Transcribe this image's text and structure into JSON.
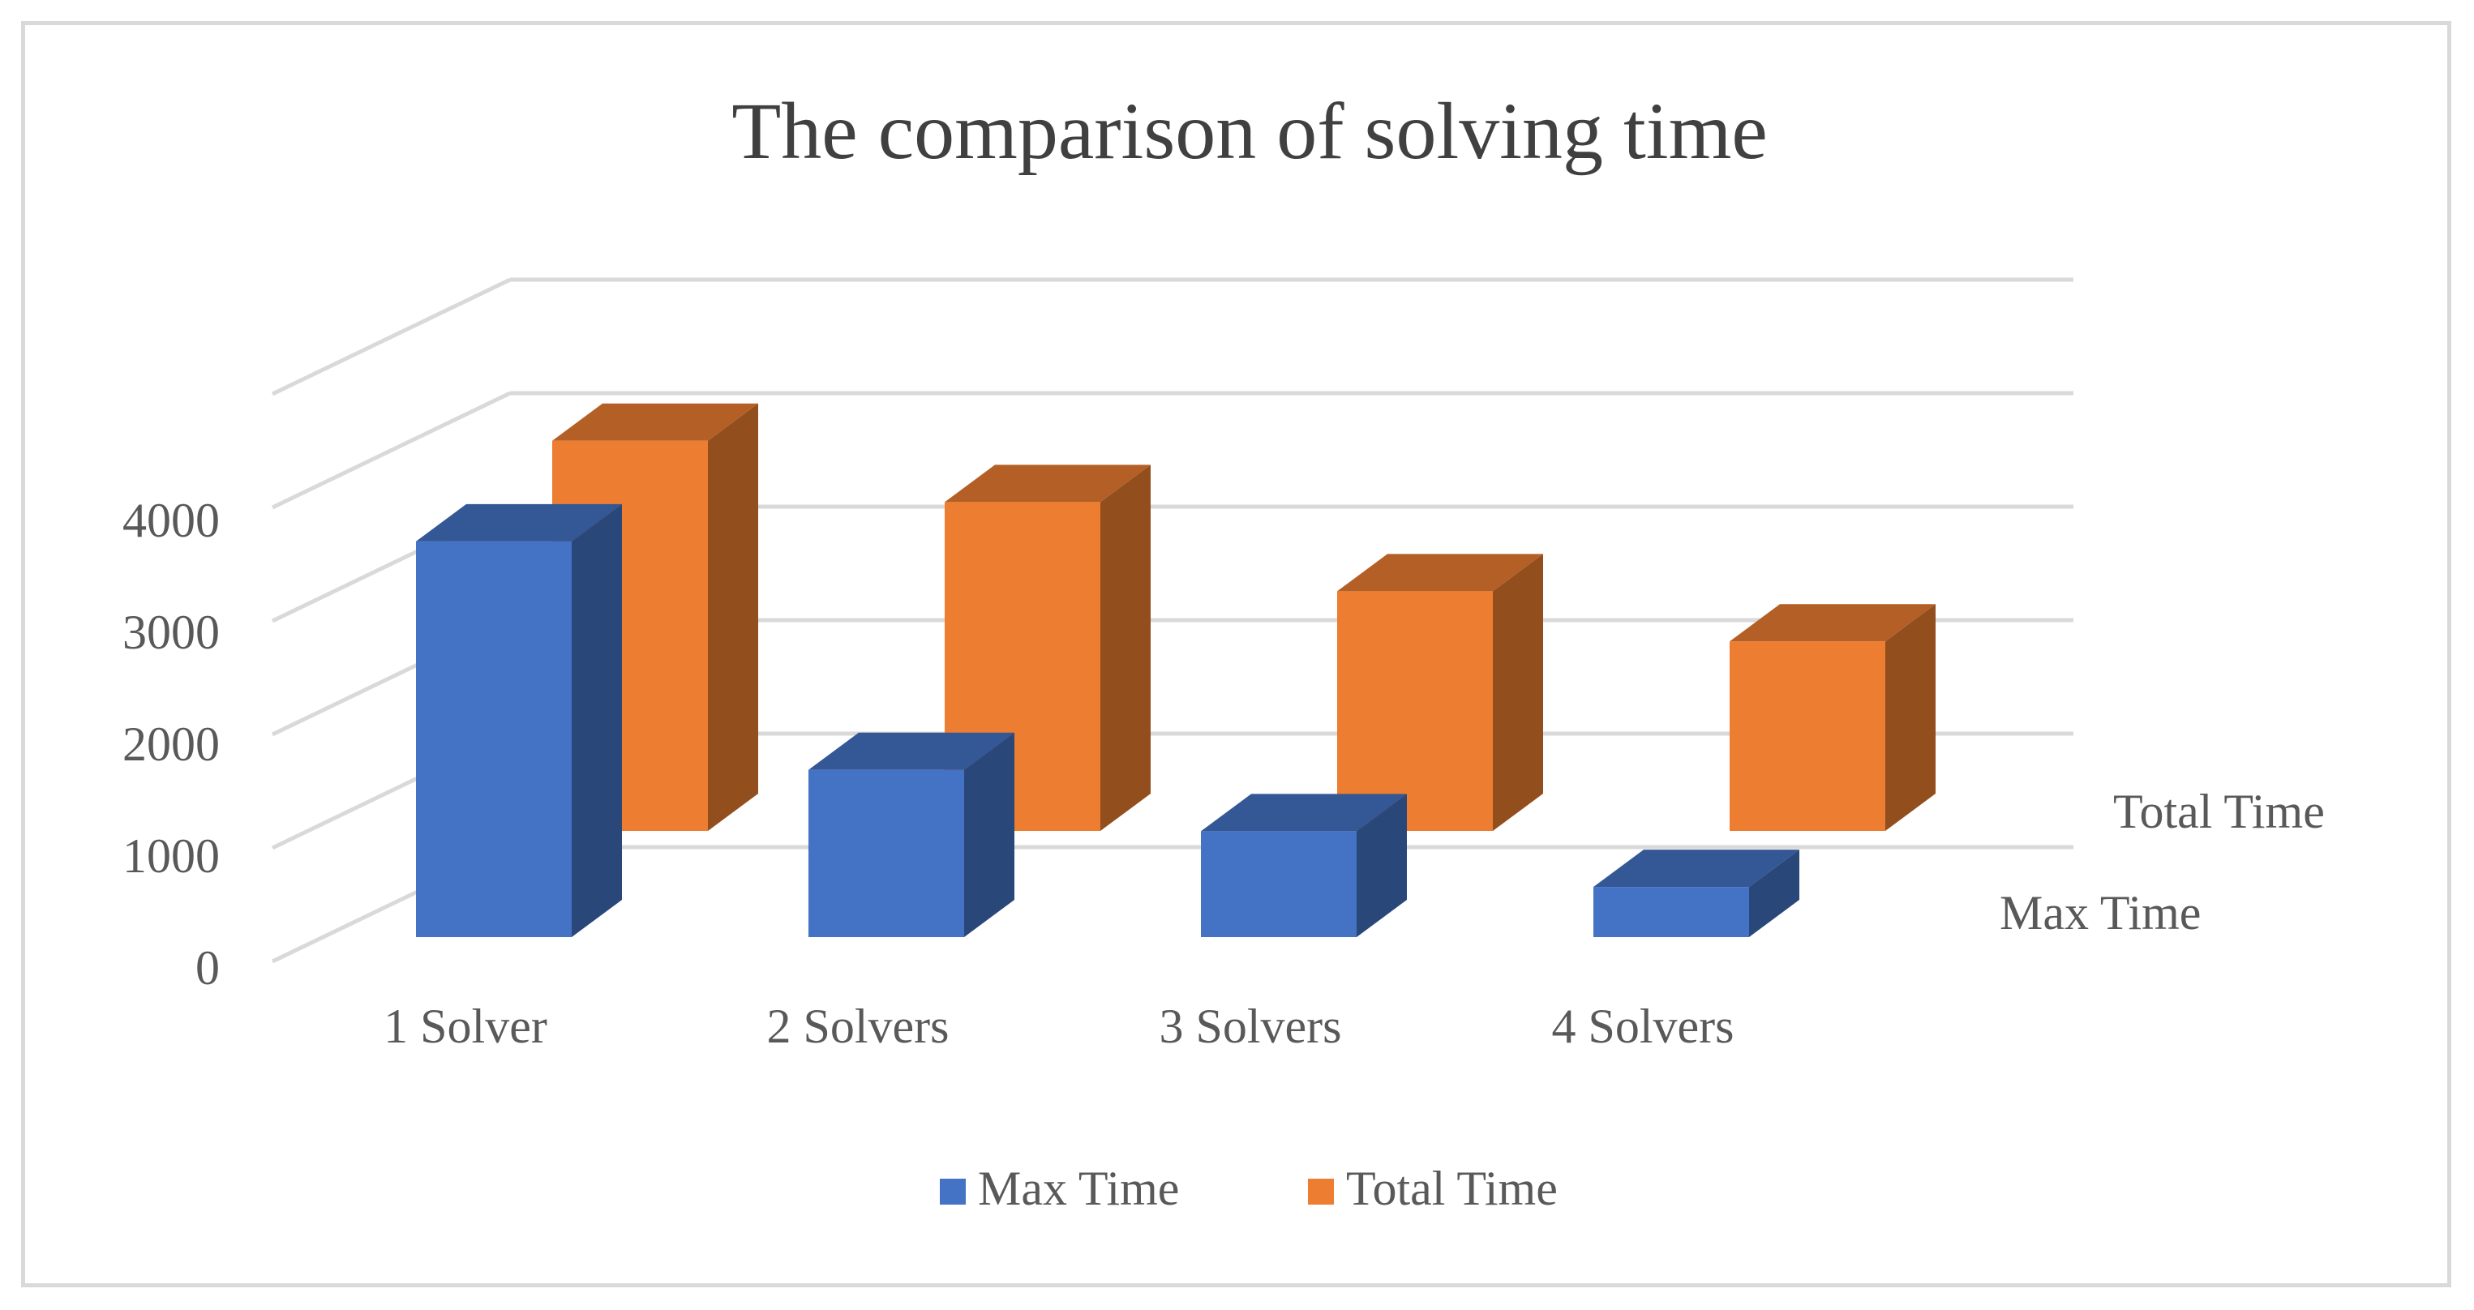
{
  "chart_data": {
    "type": "bar",
    "subtype": "3d-column",
    "title": "The comparison of solving time",
    "categories": [
      "1 Solver",
      "2 Solvers",
      "3 Solvers",
      "4 Solvers"
    ],
    "series": [
      {
        "name": "Max Time",
        "values": [
          3550,
          1500,
          950,
          450
        ],
        "color": "#4472c4"
      },
      {
        "name": "Total Time",
        "values": [
          3500,
          2950,
          2150,
          1700
        ],
        "color": "#ed7d31"
      }
    ],
    "yticks": [
      "0",
      "1000",
      "2000",
      "3000",
      "4000"
    ],
    "ylim": [
      0,
      5000
    ],
    "grid": true,
    "legend_position": "bottom",
    "depth_axis_labels": [
      "Total Time",
      "Max Time"
    ],
    "colors": {
      "frame": "#d9d9d9",
      "grid": "#d9d9d9",
      "text": "#595959",
      "title": "#404040"
    }
  }
}
